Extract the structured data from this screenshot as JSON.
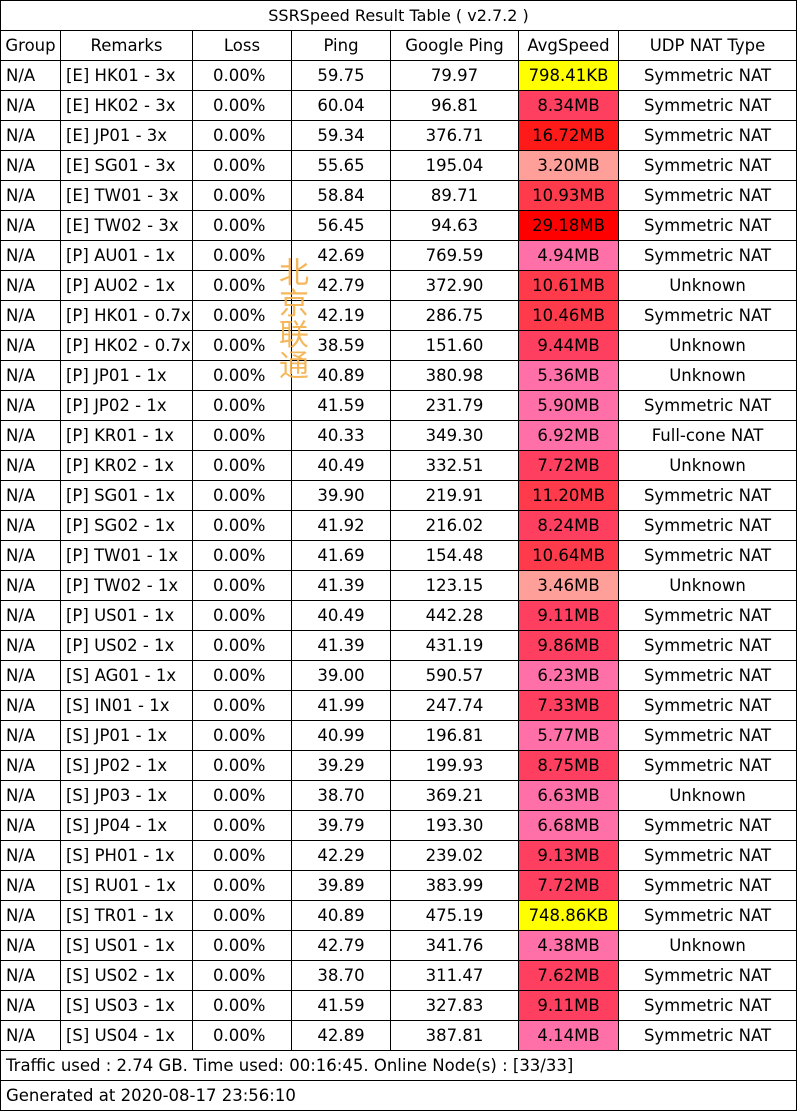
{
  "title": "SSRSpeed Result Table ( v2.7.2 )",
  "columns": [
    "Group",
    "Remarks",
    "Loss",
    "Ping",
    "Google Ping",
    "AvgSpeed",
    "UDP NAT Type"
  ],
  "speed_colors": {
    "yellow": "#ffff00",
    "pink_light": "#ff9f9a",
    "pink": "#ff6fa8",
    "red_pink": "#ff3f5f",
    "red_mid": "#ff2424",
    "red": "#ff0000"
  },
  "rows": [
    {
      "group": "N/A",
      "remarks": "[E] HK01 - 3x",
      "loss": "0.00%",
      "ping": "59.75",
      "gping": "79.97",
      "speed": "798.41KB",
      "color": "#ffff00",
      "nat": "Symmetric NAT"
    },
    {
      "group": "N/A",
      "remarks": "[E] HK02 - 3x",
      "loss": "0.00%",
      "ping": "60.04",
      "gping": "96.81",
      "speed": "8.34MB",
      "color": "#ff3f5f",
      "nat": "Symmetric NAT"
    },
    {
      "group": "N/A",
      "remarks": "[E] JP01 - 3x",
      "loss": "0.00%",
      "ping": "59.34",
      "gping": "376.71",
      "speed": "16.72MB",
      "color": "#ff1a1a",
      "nat": "Symmetric NAT"
    },
    {
      "group": "N/A",
      "remarks": "[E] SG01 - 3x",
      "loss": "0.00%",
      "ping": "55.65",
      "gping": "195.04",
      "speed": "3.20MB",
      "color": "#ff9f9a",
      "nat": "Symmetric NAT"
    },
    {
      "group": "N/A",
      "remarks": "[E] TW01 - 3x",
      "loss": "0.00%",
      "ping": "58.84",
      "gping": "89.71",
      "speed": "10.93MB",
      "color": "#ff3a4a",
      "nat": "Symmetric NAT"
    },
    {
      "group": "N/A",
      "remarks": "[E] TW02 - 3x",
      "loss": "0.00%",
      "ping": "56.45",
      "gping": "94.63",
      "speed": "29.18MB",
      "color": "#ff0000",
      "nat": "Symmetric NAT"
    },
    {
      "group": "N/A",
      "remarks": "[P] AU01 - 1x",
      "loss": "0.00%",
      "ping": "42.69",
      "gping": "769.59",
      "speed": "4.94MB",
      "color": "#ff6fa8",
      "nat": "Symmetric NAT"
    },
    {
      "group": "N/A",
      "remarks": "[P] AU02 - 1x",
      "loss": "0.00%",
      "ping": "42.79",
      "gping": "372.90",
      "speed": "10.61MB",
      "color": "#ff3a4a",
      "nat": "Unknown"
    },
    {
      "group": "N/A",
      "remarks": "[P] HK01 - 0.7x",
      "loss": "0.00%",
      "ping": "42.19",
      "gping": "286.75",
      "speed": "10.46MB",
      "color": "#ff3a4a",
      "nat": "Symmetric NAT"
    },
    {
      "group": "N/A",
      "remarks": "[P] HK02 - 0.7x",
      "loss": "0.00%",
      "ping": "38.59",
      "gping": "151.60",
      "speed": "9.44MB",
      "color": "#ff3f5f",
      "nat": "Unknown"
    },
    {
      "group": "N/A",
      "remarks": "[P] JP01 - 1x",
      "loss": "0.00%",
      "ping": "40.89",
      "gping": "380.98",
      "speed": "5.36MB",
      "color": "#ff6fa8",
      "nat": "Unknown"
    },
    {
      "group": "N/A",
      "remarks": "[P] JP02 - 1x",
      "loss": "0.00%",
      "ping": "41.59",
      "gping": "231.79",
      "speed": "5.90MB",
      "color": "#ff6fa8",
      "nat": "Symmetric NAT"
    },
    {
      "group": "N/A",
      "remarks": "[P] KR01 - 1x",
      "loss": "0.00%",
      "ping": "40.33",
      "gping": "349.30",
      "speed": "6.92MB",
      "color": "#ff6fa8",
      "nat": "Full-cone NAT"
    },
    {
      "group": "N/A",
      "remarks": "[P] KR02 - 1x",
      "loss": "0.00%",
      "ping": "40.49",
      "gping": "332.51",
      "speed": "7.72MB",
      "color": "#ff3f5f",
      "nat": "Unknown"
    },
    {
      "group": "N/A",
      "remarks": "[P] SG01 - 1x",
      "loss": "0.00%",
      "ping": "39.90",
      "gping": "219.91",
      "speed": "11.20MB",
      "color": "#ff3a4a",
      "nat": "Symmetric NAT"
    },
    {
      "group": "N/A",
      "remarks": "[P] SG02 - 1x",
      "loss": "0.00%",
      "ping": "41.92",
      "gping": "216.02",
      "speed": "8.24MB",
      "color": "#ff3f5f",
      "nat": "Symmetric NAT"
    },
    {
      "group": "N/A",
      "remarks": "[P] TW01 - 1x",
      "loss": "0.00%",
      "ping": "41.69",
      "gping": "154.48",
      "speed": "10.64MB",
      "color": "#ff3a4a",
      "nat": "Symmetric NAT"
    },
    {
      "group": "N/A",
      "remarks": "[P] TW02 - 1x",
      "loss": "0.00%",
      "ping": "41.39",
      "gping": "123.15",
      "speed": "3.46MB",
      "color": "#ff9f9a",
      "nat": "Unknown"
    },
    {
      "group": "N/A",
      "remarks": "[P] US01 - 1x",
      "loss": "0.00%",
      "ping": "40.49",
      "gping": "442.28",
      "speed": "9.11MB",
      "color": "#ff3f5f",
      "nat": "Symmetric NAT"
    },
    {
      "group": "N/A",
      "remarks": "[P] US02 - 1x",
      "loss": "0.00%",
      "ping": "41.39",
      "gping": "431.19",
      "speed": "9.86MB",
      "color": "#ff3f5f",
      "nat": "Symmetric NAT"
    },
    {
      "group": "N/A",
      "remarks": "[S] AG01 - 1x",
      "loss": "0.00%",
      "ping": "39.00",
      "gping": "590.57",
      "speed": "6.23MB",
      "color": "#ff6fa8",
      "nat": "Symmetric NAT"
    },
    {
      "group": "N/A",
      "remarks": "[S] IN01 - 1x",
      "loss": "0.00%",
      "ping": "41.99",
      "gping": "247.74",
      "speed": "7.33MB",
      "color": "#ff3f5f",
      "nat": "Symmetric NAT"
    },
    {
      "group": "N/A",
      "remarks": "[S] JP01 - 1x",
      "loss": "0.00%",
      "ping": "40.99",
      "gping": "196.81",
      "speed": "5.77MB",
      "color": "#ff6fa8",
      "nat": "Symmetric NAT"
    },
    {
      "group": "N/A",
      "remarks": "[S] JP02 - 1x",
      "loss": "0.00%",
      "ping": "39.29",
      "gping": "199.93",
      "speed": "8.75MB",
      "color": "#ff3f5f",
      "nat": "Symmetric NAT"
    },
    {
      "group": "N/A",
      "remarks": "[S] JP03 - 1x",
      "loss": "0.00%",
      "ping": "38.70",
      "gping": "369.21",
      "speed": "6.63MB",
      "color": "#ff6fa8",
      "nat": "Unknown"
    },
    {
      "group": "N/A",
      "remarks": "[S] JP04 - 1x",
      "loss": "0.00%",
      "ping": "39.79",
      "gping": "193.30",
      "speed": "6.68MB",
      "color": "#ff6fa8",
      "nat": "Symmetric NAT"
    },
    {
      "group": "N/A",
      "remarks": "[S] PH01 - 1x",
      "loss": "0.00%",
      "ping": "42.29",
      "gping": "239.02",
      "speed": "9.13MB",
      "color": "#ff3f5f",
      "nat": "Symmetric NAT"
    },
    {
      "group": "N/A",
      "remarks": "[S] RU01 - 1x",
      "loss": "0.00%",
      "ping": "39.89",
      "gping": "383.99",
      "speed": "7.72MB",
      "color": "#ff3f5f",
      "nat": "Symmetric NAT"
    },
    {
      "group": "N/A",
      "remarks": "[S] TR01 - 1x",
      "loss": "0.00%",
      "ping": "40.89",
      "gping": "475.19",
      "speed": "748.86KB",
      "color": "#ffff00",
      "nat": "Symmetric NAT"
    },
    {
      "group": "N/A",
      "remarks": "[S] US01 - 1x",
      "loss": "0.00%",
      "ping": "42.79",
      "gping": "341.76",
      "speed": "4.38MB",
      "color": "#ff6fa8",
      "nat": "Unknown"
    },
    {
      "group": "N/A",
      "remarks": "[S] US02 - 1x",
      "loss": "0.00%",
      "ping": "38.70",
      "gping": "311.47",
      "speed": "7.62MB",
      "color": "#ff3f5f",
      "nat": "Symmetric NAT"
    },
    {
      "group": "N/A",
      "remarks": "[S] US03 - 1x",
      "loss": "0.00%",
      "ping": "41.59",
      "gping": "327.83",
      "speed": "9.11MB",
      "color": "#ff3f5f",
      "nat": "Symmetric NAT"
    },
    {
      "group": "N/A",
      "remarks": "[S] US04 - 1x",
      "loss": "0.00%",
      "ping": "42.89",
      "gping": "387.81",
      "speed": "4.14MB",
      "color": "#ff6fa8",
      "nat": "Symmetric NAT"
    }
  ],
  "footer": {
    "summary": "Traffic used : 2.74 GB. Time used: 00:16:45. Online Node(s) : [33/33]",
    "generated": "Generated at 2020-08-17 23:56:10"
  },
  "watermark": {
    "chars": [
      "北",
      "京",
      "联",
      "通"
    ],
    "color": "#f5b04a"
  }
}
